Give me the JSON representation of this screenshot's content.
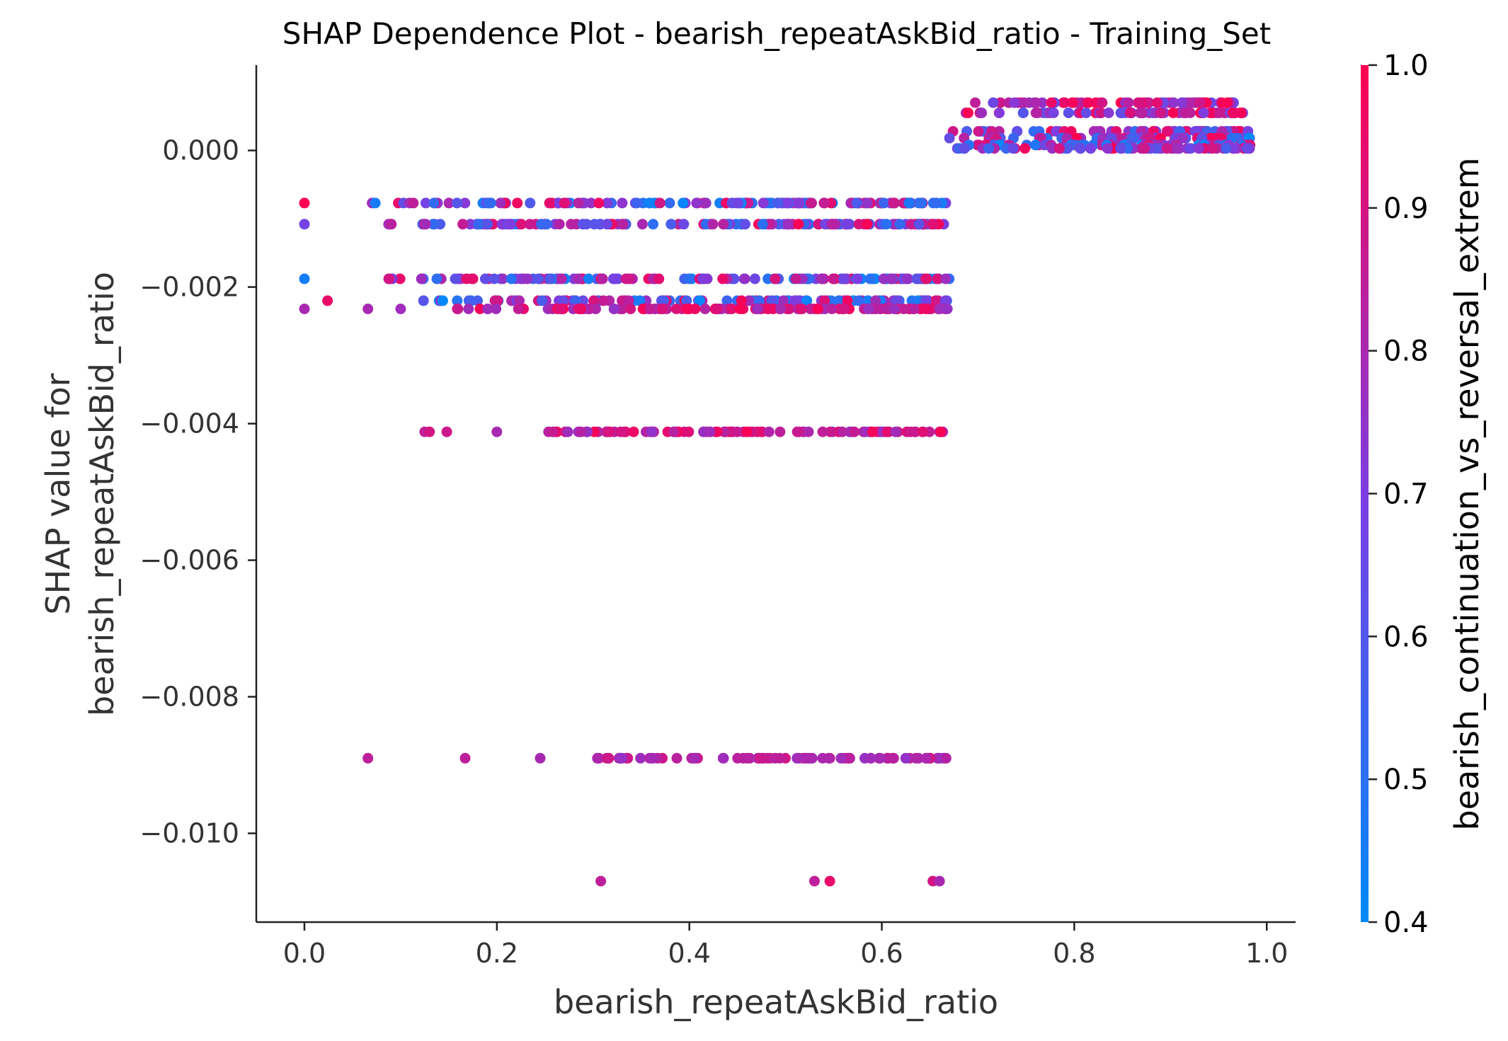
{
  "chart_data": {
    "type": "scatter",
    "title": "SHAP Dependence Plot - bearish_repeatAskBid_ratio - Training_Set",
    "xlabel": "bearish_repeatAskBid_ratio",
    "ylabel_lines": [
      "SHAP value for",
      "bearish_repeatAskBid_ratio"
    ],
    "xlim": [
      -0.05,
      1.03
    ],
    "ylim": [
      -0.0113,
      0.00125
    ],
    "x_ticks": [
      0.0,
      0.2,
      0.4,
      0.6,
      0.8,
      1.0
    ],
    "x_tick_labels": [
      "0.0",
      "0.2",
      "0.4",
      "0.6",
      "0.8",
      "1.0"
    ],
    "y_ticks": [
      0.0,
      -0.002,
      -0.004,
      -0.006,
      -0.008,
      -0.01
    ],
    "y_tick_labels": [
      "0.000",
      "−0.002",
      "−0.004",
      "−0.006",
      "−0.008",
      "−0.010"
    ],
    "grid": false,
    "colorbar": {
      "label": "bearish_continuation_vs_reversal_extrem",
      "range": [
        0.4,
        1.0
      ],
      "ticks": [
        0.4,
        0.5,
        0.6,
        0.7,
        0.8,
        0.9,
        1.0
      ],
      "tick_labels": [
        "0.4",
        "0.5",
        "0.6",
        "0.7",
        "0.8",
        "0.9",
        "1.0"
      ],
      "colormap": [
        "#008afb",
        "#7d3de1",
        "#ff0052"
      ]
    },
    "bands": [
      {
        "y": -0.00077,
        "x_range": [
          0.07,
          0.67
        ],
        "color_range": [
          0.4,
          1.0
        ]
      },
      {
        "y": -0.00108,
        "x_range": [
          0.08,
          0.67
        ],
        "color_range": [
          0.5,
          1.0
        ]
      },
      {
        "y": -0.00188,
        "x_range": [
          0.065,
          0.67
        ],
        "color_range": [
          0.4,
          1.0
        ]
      },
      {
        "y": -0.0022,
        "x_range": [
          0.12,
          0.67
        ],
        "color_range": [
          0.4,
          1.0
        ]
      },
      {
        "y": -0.00232,
        "x_range": [
          0.15,
          0.67
        ],
        "color_range": [
          0.75,
          1.0
        ]
      },
      {
        "y": -0.00412,
        "x_range": [
          0.245,
          0.67
        ],
        "color_range": [
          0.75,
          1.0
        ]
      },
      {
        "y": -0.0089,
        "x_range": [
          0.29,
          0.67
        ],
        "color_range": [
          0.75,
          0.9
        ]
      },
      {
        "y": 0.0007,
        "x_range": [
          0.68,
          0.97
        ],
        "color_range": [
          0.65,
          1.0
        ]
      },
      {
        "y": 0.00055,
        "x_range": [
          0.67,
          0.985
        ],
        "color_range": [
          0.6,
          1.0
        ]
      },
      {
        "y": 0.00028,
        "x_range": [
          0.67,
          0.985
        ],
        "color_range": [
          0.5,
          1.0
        ]
      },
      {
        "y": 0.00018,
        "x_range": [
          0.67,
          0.985
        ],
        "color_range": [
          0.4,
          1.0
        ]
      },
      {
        "y": 8e-05,
        "x_range": [
          0.67,
          0.985
        ],
        "color_range": [
          0.4,
          1.0
        ]
      },
      {
        "y": 3e-05,
        "x_range": [
          0.67,
          0.985
        ],
        "color_range": [
          0.5,
          1.0
        ]
      }
    ],
    "points": [
      {
        "x": 0.0,
        "y": -0.00077,
        "c": 1.0
      },
      {
        "x": 0.0,
        "y": -0.00108,
        "c": 0.68
      },
      {
        "x": 0.0,
        "y": -0.00188,
        "c": 0.45
      },
      {
        "x": 0.0,
        "y": -0.00232,
        "c": 0.8
      },
      {
        "x": 0.024,
        "y": -0.0022,
        "c": 0.95
      },
      {
        "x": 0.066,
        "y": -0.00232,
        "c": 0.8
      },
      {
        "x": 0.1,
        "y": -0.00232,
        "c": 0.78
      },
      {
        "x": 0.125,
        "y": -0.00412,
        "c": 0.85
      },
      {
        "x": 0.13,
        "y": -0.00412,
        "c": 0.9
      },
      {
        "x": 0.148,
        "y": -0.00412,
        "c": 0.88
      },
      {
        "x": 0.2,
        "y": -0.00412,
        "c": 0.8
      },
      {
        "x": 0.066,
        "y": -0.0089,
        "c": 0.85
      },
      {
        "x": 0.167,
        "y": -0.0089,
        "c": 0.85
      },
      {
        "x": 0.245,
        "y": -0.0089,
        "c": 0.8
      },
      {
        "x": 0.308,
        "y": -0.0107,
        "c": 0.85
      },
      {
        "x": 0.53,
        "y": -0.0107,
        "c": 0.85
      },
      {
        "x": 0.546,
        "y": -0.0107,
        "c": 0.95
      },
      {
        "x": 0.653,
        "y": -0.0107,
        "c": 0.9
      },
      {
        "x": 0.66,
        "y": -0.0107,
        "c": 0.8
      }
    ]
  }
}
